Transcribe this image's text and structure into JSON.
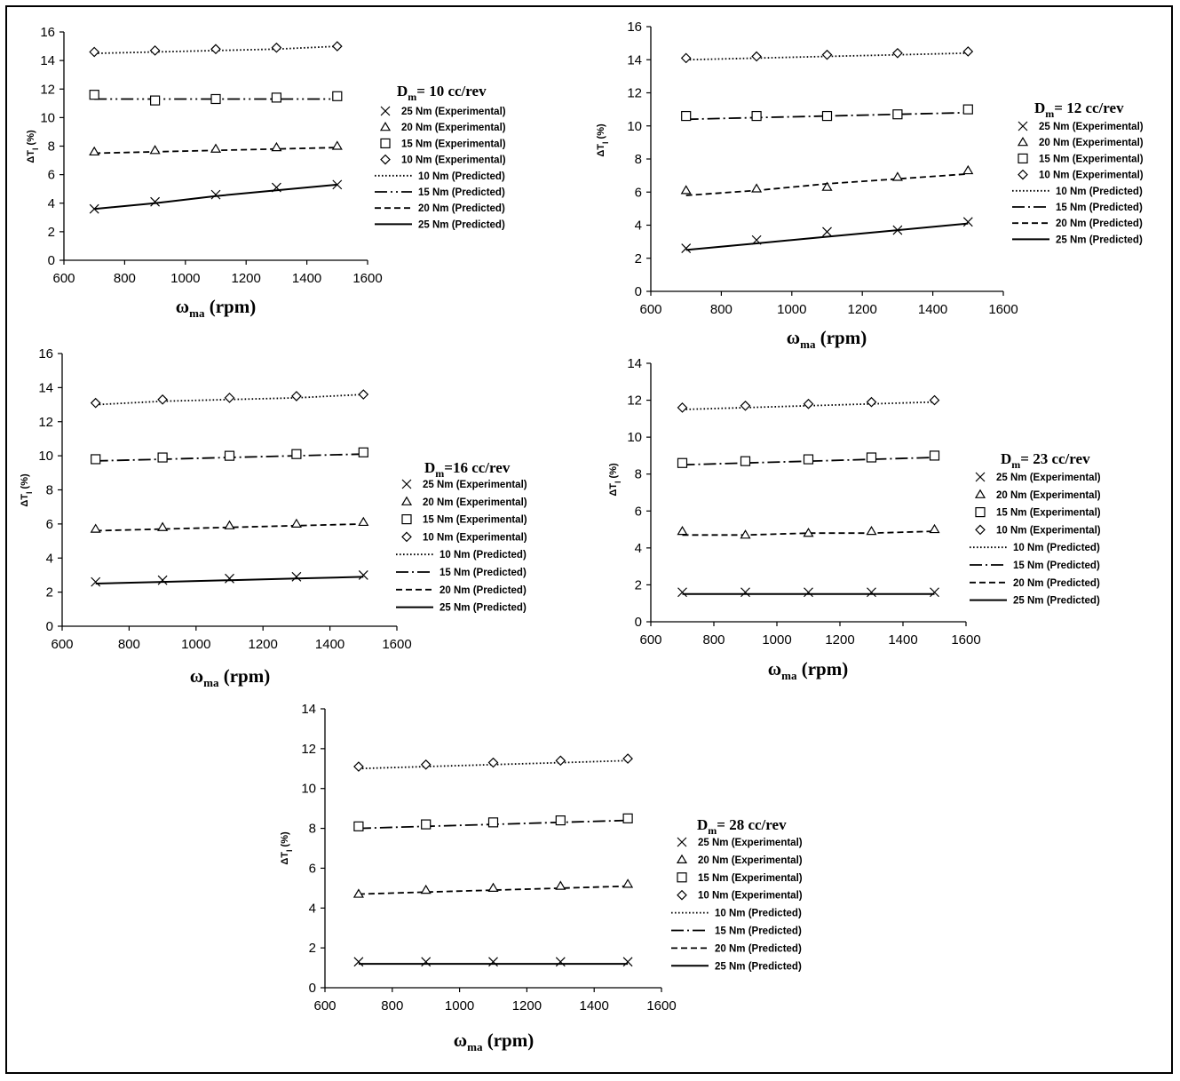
{
  "chart_data": [
    {
      "type": "line",
      "title_main": "D",
      "title_sub": "m",
      "title_rest": "= 10 cc/rev",
      "xlabel_main": "ω",
      "xlabel_sub": "ma",
      "xlabel_rest": " (rpm)",
      "ylabel_main": "ΔT",
      "ylabel_sub": "l",
      "ylabel_rest": " (%)",
      "xlim": [
        600,
        1600
      ],
      "ylim": [
        0,
        16
      ],
      "xticks": [
        "600",
        "800",
        "1000",
        "1200",
        "1400",
        "1600"
      ],
      "yticks": [
        "0",
        "2",
        "4",
        "6",
        "8",
        "10",
        "12",
        "14",
        "16"
      ],
      "x": [
        700,
        900,
        1100,
        1300,
        1500
      ],
      "experimental": [
        {
          "name": "25 Nm (Experimental)",
          "marker": "x",
          "values": [
            3.6,
            4.1,
            4.6,
            5.1,
            5.3
          ]
        },
        {
          "name": "20 Nm (Experimental)",
          "marker": "triangle",
          "values": [
            7.6,
            7.7,
            7.8,
            7.9,
            8.0
          ]
        },
        {
          "name": "15 Nm (Experimental)",
          "marker": "square",
          "values": [
            11.6,
            11.2,
            11.3,
            11.4,
            11.5
          ]
        },
        {
          "name": "10 Nm (Experimental)",
          "marker": "diamond",
          "values": [
            14.6,
            14.7,
            14.8,
            14.9,
            15.0
          ]
        }
      ],
      "predicted": [
        {
          "name": "10 Nm (Predicted)",
          "dash": "dotted",
          "values": [
            14.5,
            14.6,
            14.7,
            14.8,
            15.0
          ]
        },
        {
          "name": "15 Nm (Predicted)",
          "dash": "dashdotdot",
          "values": [
            11.3,
            11.3,
            11.3,
            11.3,
            11.3
          ]
        },
        {
          "name": "20 Nm (Predicted)",
          "dash": "dashed",
          "values": [
            7.5,
            7.6,
            7.7,
            7.8,
            7.9
          ]
        },
        {
          "name": "25 Nm (Predicted)",
          "dash": "solid",
          "values": [
            3.6,
            4.0,
            4.5,
            4.9,
            5.3
          ]
        }
      ]
    },
    {
      "type": "line",
      "title_main": "D",
      "title_sub": "m",
      "title_rest": "= 12 cc/rev",
      "xlabel_main": "ω",
      "xlabel_sub": "ma",
      "xlabel_rest": " (rpm)",
      "ylabel_main": "ΔT",
      "ylabel_sub": "l",
      "ylabel_rest": " (%)",
      "xlim": [
        600,
        1600
      ],
      "ylim": [
        0,
        16
      ],
      "xticks": [
        "600",
        "800",
        "1000",
        "1200",
        "1400",
        "1600"
      ],
      "yticks": [
        "0",
        "2",
        "4",
        "6",
        "8",
        "10",
        "12",
        "14",
        "16"
      ],
      "x": [
        700,
        900,
        1100,
        1300,
        1500
      ],
      "experimental": [
        {
          "name": "25 Nm (Experimental)",
          "marker": "x",
          "values": [
            2.6,
            3.1,
            3.6,
            3.7,
            4.2
          ]
        },
        {
          "name": "20 Nm (Experimental)",
          "marker": "triangle",
          "values": [
            6.1,
            6.2,
            6.3,
            6.9,
            7.3
          ]
        },
        {
          "name": "15 Nm (Experimental)",
          "marker": "square",
          "values": [
            10.6,
            10.6,
            10.6,
            10.7,
            11.0
          ]
        },
        {
          "name": "10 Nm (Experimental)",
          "marker": "diamond",
          "values": [
            14.1,
            14.2,
            14.3,
            14.4,
            14.5
          ]
        }
      ],
      "predicted": [
        {
          "name": "10 Nm (Predicted)",
          "dash": "dotted",
          "values": [
            14.0,
            14.1,
            14.2,
            14.3,
            14.4
          ]
        },
        {
          "name": "15 Nm (Predicted)",
          "dash": "dashdot",
          "values": [
            10.4,
            10.5,
            10.6,
            10.7,
            10.8
          ]
        },
        {
          "name": "20 Nm (Predicted)",
          "dash": "dashed",
          "values": [
            5.8,
            6.1,
            6.5,
            6.8,
            7.1
          ]
        },
        {
          "name": "25 Nm (Predicted)",
          "dash": "solid",
          "values": [
            2.5,
            2.9,
            3.3,
            3.7,
            4.1
          ]
        }
      ]
    },
    {
      "type": "line",
      "title_main": "D",
      "title_sub": "m",
      "title_rest": "=16 cc/rev",
      "xlabel_main": "ω",
      "xlabel_sub": "ma",
      "xlabel_rest": " (rpm)",
      "ylabel_main": "ΔT",
      "ylabel_sub": "l",
      "ylabel_rest": " (%)",
      "xlim": [
        600,
        1600
      ],
      "ylim": [
        0,
        16
      ],
      "xticks": [
        "600",
        "800",
        "1000",
        "1200",
        "1400",
        "1600"
      ],
      "yticks": [
        "0",
        "2",
        "4",
        "6",
        "8",
        "10",
        "12",
        "14",
        "16"
      ],
      "x": [
        700,
        900,
        1100,
        1300,
        1500
      ],
      "experimental": [
        {
          "name": "25 Nm (Experimental)",
          "marker": "x",
          "values": [
            2.6,
            2.7,
            2.8,
            2.9,
            3.0
          ]
        },
        {
          "name": "20 Nm (Experimental)",
          "marker": "triangle",
          "values": [
            5.7,
            5.8,
            5.9,
            6.0,
            6.1
          ]
        },
        {
          "name": "15 Nm (Experimental)",
          "marker": "square",
          "values": [
            9.8,
            9.9,
            10.0,
            10.1,
            10.2
          ]
        },
        {
          "name": "10 Nm (Experimental)",
          "marker": "diamond",
          "values": [
            13.1,
            13.3,
            13.4,
            13.5,
            13.6
          ]
        }
      ],
      "predicted": [
        {
          "name": "10 Nm (Predicted)",
          "dash": "dotted",
          "values": [
            13.0,
            13.2,
            13.3,
            13.4,
            13.6
          ]
        },
        {
          "name": "15 Nm (Predicted)",
          "dash": "dashdot",
          "values": [
            9.7,
            9.8,
            9.9,
            10.0,
            10.1
          ]
        },
        {
          "name": "20 Nm (Predicted)",
          "dash": "dashed",
          "values": [
            5.6,
            5.7,
            5.8,
            5.9,
            6.0
          ]
        },
        {
          "name": "25 Nm (Predicted)",
          "dash": "solid",
          "values": [
            2.5,
            2.6,
            2.7,
            2.8,
            2.9
          ]
        }
      ]
    },
    {
      "type": "line",
      "title_main": "D",
      "title_sub": "m",
      "title_rest": "= 23 cc/rev",
      "xlabel_main": "ω",
      "xlabel_sub": "ma",
      "xlabel_rest": " (rpm)",
      "ylabel_main": "ΔT",
      "ylabel_sub": "l",
      "ylabel_rest": " (%)",
      "xlim": [
        600,
        1600
      ],
      "ylim": [
        0,
        14
      ],
      "xticks": [
        "600",
        "800",
        "1000",
        "1200",
        "1400",
        "1600"
      ],
      "yticks": [
        "0",
        "2",
        "4",
        "6",
        "8",
        "10",
        "12",
        "14"
      ],
      "x": [
        700,
        900,
        1100,
        1300,
        1500
      ],
      "experimental": [
        {
          "name": "25 Nm (Experimental)",
          "marker": "x",
          "values": [
            1.6,
            1.6,
            1.6,
            1.6,
            1.6
          ]
        },
        {
          "name": "20 Nm (Experimental)",
          "marker": "triangle",
          "values": [
            4.9,
            4.7,
            4.8,
            4.9,
            5.0
          ]
        },
        {
          "name": "15 Nm (Experimental)",
          "marker": "square",
          "values": [
            8.6,
            8.7,
            8.8,
            8.9,
            9.0
          ]
        },
        {
          "name": "10 Nm (Experimental)",
          "marker": "diamond",
          "values": [
            11.6,
            11.7,
            11.8,
            11.9,
            12.0
          ]
        }
      ],
      "predicted": [
        {
          "name": "10 Nm (Predicted)",
          "dash": "dotted",
          "values": [
            11.5,
            11.6,
            11.7,
            11.8,
            11.9
          ]
        },
        {
          "name": "15 Nm (Predicted)",
          "dash": "dashdot",
          "values": [
            8.5,
            8.6,
            8.7,
            8.8,
            8.9
          ]
        },
        {
          "name": "20 Nm (Predicted)",
          "dash": "dashed",
          "values": [
            4.7,
            4.7,
            4.8,
            4.8,
            4.9
          ]
        },
        {
          "name": "25 Nm (Predicted)",
          "dash": "solid",
          "values": [
            1.5,
            1.5,
            1.5,
            1.5,
            1.5
          ]
        }
      ]
    },
    {
      "type": "line",
      "title_main": "D",
      "title_sub": "m",
      "title_rest": "= 28 cc/rev",
      "xlabel_main": "ω",
      "xlabel_sub": "ma",
      "xlabel_rest": " (rpm)",
      "ylabel_main": "ΔT",
      "ylabel_sub": "l",
      "ylabel_rest": " (%)",
      "xlim": [
        600,
        1600
      ],
      "ylim": [
        0,
        14
      ],
      "xticks": [
        "600",
        "800",
        "1000",
        "1200",
        "1400",
        "1600"
      ],
      "yticks": [
        "0",
        "2",
        "4",
        "6",
        "8",
        "10",
        "12",
        "14"
      ],
      "x": [
        700,
        900,
        1100,
        1300,
        1500
      ],
      "experimental": [
        {
          "name": "25 Nm (Experimental)",
          "marker": "x",
          "values": [
            1.3,
            1.3,
            1.3,
            1.3,
            1.3
          ]
        },
        {
          "name": "20 Nm (Experimental)",
          "marker": "triangle",
          "values": [
            4.7,
            4.9,
            5.0,
            5.1,
            5.2
          ]
        },
        {
          "name": "15 Nm (Experimental)",
          "marker": "square",
          "values": [
            8.1,
            8.2,
            8.3,
            8.4,
            8.5
          ]
        },
        {
          "name": "10 Nm (Experimental)",
          "marker": "diamond",
          "values": [
            11.1,
            11.2,
            11.3,
            11.4,
            11.5
          ]
        }
      ],
      "predicted": [
        {
          "name": "10 Nm (Predicted)",
          "dash": "dotted",
          "values": [
            11.0,
            11.1,
            11.2,
            11.3,
            11.4
          ]
        },
        {
          "name": "15 Nm (Predicted)",
          "dash": "dashdot",
          "values": [
            8.0,
            8.1,
            8.2,
            8.3,
            8.4
          ]
        },
        {
          "name": "20 Nm (Predicted)",
          "dash": "dashed",
          "values": [
            4.7,
            4.8,
            4.9,
            5.0,
            5.1
          ]
        },
        {
          "name": "25 Nm (Predicted)",
          "dash": "solid",
          "values": [
            1.2,
            1.2,
            1.2,
            1.2,
            1.2
          ]
        }
      ]
    }
  ]
}
